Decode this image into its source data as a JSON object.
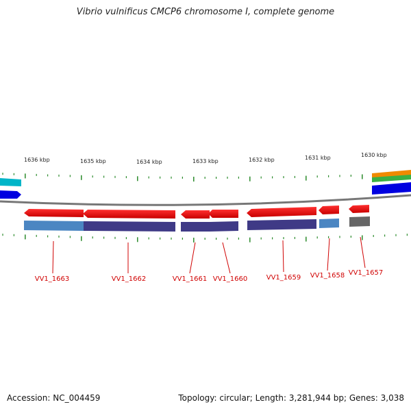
{
  "header": {
    "title": "Vibrio vulnificus CMCP6 chromosome I, complete genome"
  },
  "footer": {
    "accession": "Accession: NC_004459",
    "topology": "Topology: circular; Length: 3,281,944 bp; Genes: 3,038"
  },
  "map": {
    "scale_labels": [
      "1636 kbp",
      "1635 kbp",
      "1634 kbp",
      "1633 kbp",
      "1632 kbp",
      "1631 kbp",
      "1630 kbp"
    ],
    "genes": [
      "VV1_1663",
      "VV1_1662",
      "VV1_1661",
      "VV1_1660",
      "VV1_1659",
      "VV1_1658",
      "VV1_1657"
    ],
    "colors": {
      "gene_red": "#e00000",
      "cds_dark": "#3f3a86",
      "cds_light": "#4b86c2",
      "cds_gray": "#666666",
      "backbone": "#777777",
      "tick_green": "#2a8a2a",
      "cyan": "#00b5c8",
      "blue": "#0000e0",
      "orange": "#f08a00",
      "green": "#3cb043",
      "label_red": "#d00000"
    }
  }
}
